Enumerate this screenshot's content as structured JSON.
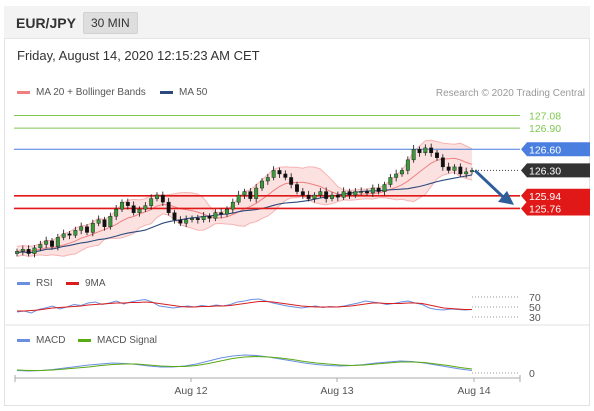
{
  "header": {
    "symbol": "EUR/JPY",
    "timeframe": "30 MIN"
  },
  "date_text": "Friday, August 14, 2020 12:15:23 AM CET",
  "credit": "Research © 2020 Trading Central",
  "colors": {
    "bb": "#f08080",
    "ma50": "#2c4a7c",
    "rsi": "#6a8fe0",
    "rsi_ma": "#d81e1e",
    "macd": "#6a8fe0",
    "macd_signal": "#5aaa14",
    "resistance": "#7ec850",
    "pivot": "#4a7fe0",
    "support": "#e01818",
    "price": "#333333",
    "arrow": "#2f5d99"
  },
  "chart_data": [
    {
      "type": "candlestick",
      "legend": [
        {
          "name": "MA 20 + Bollinger Bands"
        },
        {
          "name": "MA 50"
        }
      ],
      "legend_placement": "top-left",
      "ylim": [
        125.0,
        127.3
      ],
      "x_ticks": [
        "Aug 12",
        "Aug 13",
        "Aug 14"
      ],
      "close_series": [
        125.15,
        125.18,
        125.12,
        125.2,
        125.25,
        125.3,
        125.22,
        125.35,
        125.4,
        125.38,
        125.45,
        125.5,
        125.42,
        125.55,
        125.6,
        125.5,
        125.65,
        125.75,
        125.85,
        125.8,
        125.7,
        125.75,
        125.8,
        125.9,
        125.95,
        125.85,
        125.7,
        125.6,
        125.55,
        125.6,
        125.62,
        125.6,
        125.65,
        125.62,
        125.7,
        125.68,
        125.75,
        125.85,
        125.95,
        126.0,
        125.9,
        126.05,
        126.15,
        126.2,
        126.3,
        126.25,
        126.2,
        126.1,
        126.0,
        125.95,
        125.9,
        125.95,
        126.0,
        125.9,
        125.95,
        125.92,
        126.0,
        125.95,
        126.0,
        126.0,
        125.98,
        126.05,
        126.0,
        126.1,
        126.2,
        126.25,
        126.3,
        126.45,
        126.6,
        126.55,
        126.62,
        126.55,
        126.48,
        126.35,
        126.3,
        126.35,
        126.25,
        126.28,
        126.3
      ],
      "levels": [
        {
          "value": 127.08,
          "label": "127.08",
          "kind": "resistance"
        },
        {
          "value": 126.9,
          "label": "126.90",
          "kind": "resistance"
        },
        {
          "value": 126.6,
          "label": "126.60",
          "kind": "pivot"
        },
        {
          "value": 126.3,
          "label": "126.30",
          "kind": "last"
        },
        {
          "value": 125.94,
          "label": "125.94",
          "kind": "support"
        },
        {
          "value": 125.76,
          "label": "125.76",
          "kind": "support"
        }
      ],
      "forecast_direction": "down"
    },
    {
      "type": "line",
      "series": [
        {
          "name": "RSI"
        },
        {
          "name": "9MA"
        }
      ],
      "y_ticks": [
        70,
        50,
        30
      ],
      "ylim": [
        20,
        80
      ],
      "rsi_values": [
        40,
        42,
        38,
        45,
        48,
        52,
        46,
        50,
        55,
        53,
        58,
        60,
        55,
        58,
        62,
        56,
        60,
        63,
        65,
        60,
        52,
        50,
        48,
        50,
        52,
        50,
        53,
        51,
        54,
        52,
        55,
        60,
        62,
        65,
        66,
        62,
        58,
        55,
        52,
        50,
        48,
        50,
        52,
        49,
        51,
        50,
        52,
        55,
        58,
        62,
        60,
        58,
        55,
        57,
        60,
        62,
        58,
        55,
        48,
        45,
        44,
        46,
        45,
        44,
        45
      ],
      "ma_values": [
        42,
        42,
        43,
        44,
        46,
        48,
        49,
        50,
        51,
        52,
        54,
        55,
        56,
        57,
        58,
        58,
        59,
        59,
        60,
        59,
        57,
        55,
        53,
        51,
        50,
        50,
        51,
        51,
        52,
        52,
        53,
        55,
        57,
        59,
        61,
        61,
        60,
        58,
        56,
        54,
        52,
        51,
        50,
        50,
        50,
        50,
        51,
        52,
        54,
        56,
        58,
        58,
        57,
        57,
        57,
        58,
        58,
        57,
        54,
        51,
        48,
        47,
        46,
        45,
        45
      ]
    },
    {
      "type": "line",
      "series": [
        {
          "name": "MACD"
        },
        {
          "name": "MACD Signal"
        }
      ],
      "y_ticks": [
        0
      ],
      "ylim": [
        -0.1,
        0.5
      ],
      "macd_values": [
        0.05,
        0.04,
        0.05,
        0.07,
        0.1,
        0.13,
        0.16,
        0.18,
        0.2,
        0.19,
        0.17,
        0.14,
        0.12,
        0.12,
        0.14,
        0.18,
        0.24,
        0.3,
        0.34,
        0.36,
        0.35,
        0.32,
        0.28,
        0.24,
        0.2,
        0.17,
        0.15,
        0.14,
        0.15,
        0.17,
        0.2,
        0.22,
        0.24,
        0.23,
        0.2,
        0.16,
        0.12,
        0.08,
        0.05
      ],
      "signal_values": [
        0.06,
        0.05,
        0.05,
        0.06,
        0.08,
        0.1,
        0.12,
        0.15,
        0.17,
        0.18,
        0.18,
        0.16,
        0.14,
        0.13,
        0.13,
        0.15,
        0.19,
        0.24,
        0.29,
        0.32,
        0.33,
        0.32,
        0.3,
        0.27,
        0.23,
        0.2,
        0.18,
        0.16,
        0.15,
        0.16,
        0.18,
        0.2,
        0.22,
        0.22,
        0.21,
        0.18,
        0.15,
        0.11,
        0.08
      ]
    }
  ]
}
